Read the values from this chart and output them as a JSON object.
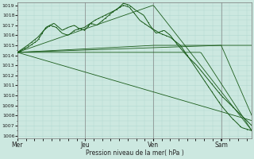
{
  "xlabel": "Pression niveau de la mer( hPa )",
  "ylim": [
    1006,
    1019
  ],
  "yticks": [
    1006,
    1007,
    1008,
    1009,
    1010,
    1011,
    1012,
    1013,
    1014,
    1015,
    1016,
    1017,
    1018,
    1019
  ],
  "xtick_labels": [
    "Mer",
    "Jeu",
    "Ven",
    "Sam"
  ],
  "xtick_positions": [
    0,
    0.333,
    0.667,
    1.0
  ],
  "bg_color": "#cce8e0",
  "grid_color": "#b0d8d0",
  "line_color": "#1a5c1a",
  "dot_color": "#1a5c1a"
}
